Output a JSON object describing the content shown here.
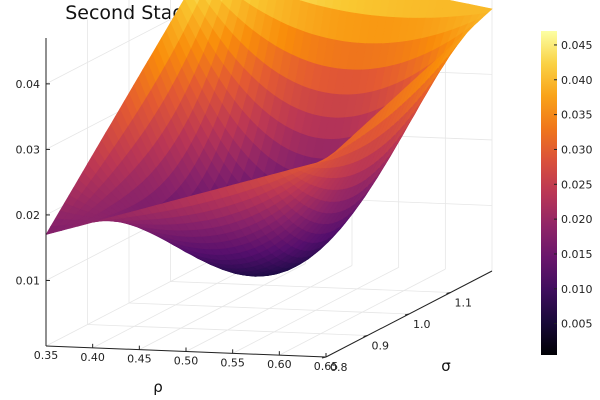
{
  "chart_data": {
    "type": "surface",
    "title": "Second Stage Objective Function: m2 m3",
    "xlabel": "ρ",
    "ylabel": "σ",
    "zlabel": "",
    "x_ticks": [
      "0.35",
      "0.40",
      "0.45",
      "0.50",
      "0.55",
      "0.60",
      "0.65"
    ],
    "y_ticks": [
      "0.8",
      "0.9",
      "1.0",
      "1.1"
    ],
    "z_ticks": [
      "0.01",
      "0.02",
      "0.03",
      "0.04"
    ],
    "colorbar_ticks": [
      "0.005",
      "0.010",
      "0.015",
      "0.020",
      "0.025",
      "0.030",
      "0.035",
      "0.040",
      "0.045"
    ],
    "xlim": [
      0.35,
      0.65
    ],
    "ylim": [
      0.8,
      1.2
    ],
    "zlim": [
      0.0,
      0.047
    ],
    "colorbar_range": [
      0.0005,
      0.047
    ],
    "colormap": "inferno",
    "surface_corner_values": [
      {
        "x": 0.35,
        "y": 0.8,
        "z": 0.017
      },
      {
        "x": 0.65,
        "y": 0.8,
        "z": 0.03
      },
      {
        "x": 0.35,
        "y": 1.2,
        "z": 0.047
      },
      {
        "x": 0.65,
        "y": 1.2,
        "z": 0.04
      }
    ],
    "minimum_value": 0.0005,
    "grid": true,
    "legend": "colorbar-right"
  }
}
